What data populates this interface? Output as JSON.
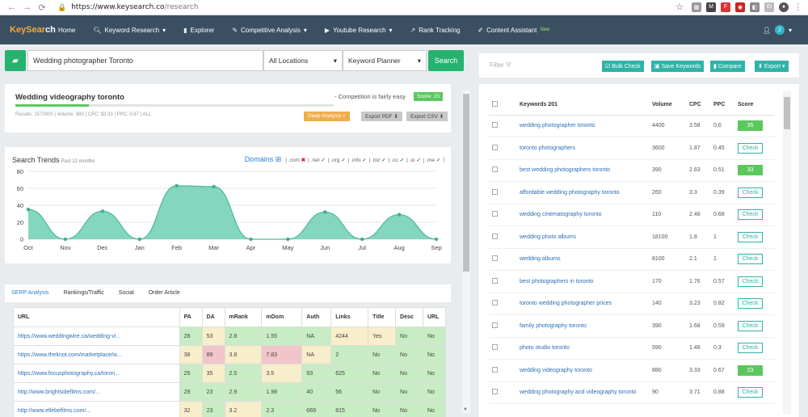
{
  "browser": {
    "url_host": "https://www.keysearch.co",
    "url_path": "/research"
  },
  "nav": {
    "logo_a": "KeySear",
    "logo_b": "ch",
    "items": [
      {
        "label": "Home",
        "icon": "none"
      },
      {
        "label": "Keyword Research",
        "icon": "search-icon"
      },
      {
        "label": "Explorer",
        "icon": "bar-chart-icon"
      },
      {
        "label": "Competitive Analysis",
        "icon": "wrench-icon"
      },
      {
        "label": "Youtube Research",
        "icon": "video-icon"
      },
      {
        "label": "Rank Tracking",
        "icon": "line-chart-icon"
      },
      {
        "label": "Content Assistant",
        "icon": "pencil-icon"
      }
    ],
    "new_badge": "New",
    "notif_count": "2"
  },
  "search": {
    "keyword": "Wedding photographer Toronto",
    "location": "All Locations",
    "source": "Keyword Planner",
    "button": "Search"
  },
  "summary": {
    "title": "Wedding videography toronto",
    "competition": "- Competition is fairly easy",
    "score": "Score: 23",
    "score_value": 23,
    "meta": "Results: 1570000 | Volume: 880 | CPC: $3.33 | PPC: 0.67 | ALL",
    "deep_analysis": "Deep Analysis",
    "export_pdf": "Export PDF",
    "export_csv": "Export CSV"
  },
  "trends": {
    "title": "Search Trends",
    "subtitle": "Past 12 months",
    "domains_label": "Domains",
    "domains": [
      {
        "ext": ".com",
        "ok": false
      },
      {
        "ext": ".net",
        "ok": true
      },
      {
        "ext": ".org",
        "ok": true
      },
      {
        "ext": ".info",
        "ok": true
      },
      {
        "ext": ".biz",
        "ok": true
      },
      {
        "ext": ".co",
        "ok": true
      },
      {
        "ext": ".io",
        "ok": true
      },
      {
        "ext": ".me",
        "ok": true
      }
    ]
  },
  "chart_data": {
    "type": "area",
    "categories": [
      "Oct",
      "Nov",
      "Dec",
      "Jan",
      "Feb",
      "Mar",
      "Apr",
      "May",
      "Jun",
      "Jul",
      "Aug",
      "Sep"
    ],
    "values": [
      35,
      0,
      33,
      0,
      63,
      62,
      0,
      0,
      32,
      0,
      29,
      0
    ],
    "ylim": [
      0,
      80
    ],
    "yticks": [
      0,
      20,
      40,
      60,
      80
    ],
    "color": "#6fcfb4"
  },
  "tabs": [
    "SERP Analysis",
    "Rankings/Traffic",
    "Social",
    "Order Article"
  ],
  "serp": {
    "headers": [
      "URL",
      "PA",
      "DA",
      "mRank",
      "mDom",
      "Auth",
      "Links",
      "Title",
      "Desc",
      "URL"
    ],
    "rows": [
      {
        "cells": [
          "https://www.weddingwire.ca/wedding-vi...",
          "28",
          "53",
          "2.8",
          "1.55",
          "NA",
          "4244",
          "Yes",
          "No",
          "No"
        ],
        "hl": [
          "",
          "",
          "y",
          "",
          "",
          "",
          "y",
          "y",
          "",
          ""
        ]
      },
      {
        "cells": [
          "https://www.theknot.com/marketplace/w...",
          "38",
          "89",
          "3.8",
          "7.83",
          "NA",
          "2",
          "No",
          "No",
          "No"
        ],
        "hl": [
          "",
          "y",
          "r",
          "y",
          "r",
          "y",
          "",
          "",
          "",
          ""
        ]
      },
      {
        "cells": [
          "https://www.focusphotography.ca/toron...",
          "25",
          "35",
          "2.5",
          "3.5",
          "93",
          "625",
          "No",
          "No",
          "No"
        ],
        "hl": [
          "",
          "",
          "y",
          "",
          "y",
          "",
          "",
          "",
          "",
          ""
        ]
      },
      {
        "cells": [
          "http://www.brightsidefilms.com/...",
          "29",
          "23",
          "2.9",
          "1.98",
          "40",
          "56",
          "No",
          "No",
          "No"
        ],
        "hl": [
          "",
          "",
          "",
          "",
          "",
          "",
          "",
          "",
          "",
          ""
        ]
      },
      {
        "cells": [
          "http://www.ellebefilms.com/...",
          "32",
          "23",
          "3.2",
          "2.3",
          "669",
          "815",
          "No",
          "No",
          "No"
        ],
        "hl": [
          "",
          "y",
          "",
          "y",
          "",
          "",
          "",
          "",
          "",
          ""
        ]
      }
    ]
  },
  "right": {
    "filter": "Filter",
    "buttons": [
      "Bulk Check",
      "Save Keywords",
      "Compare",
      "Export"
    ],
    "headers": [
      "Keywords 201",
      "Volume",
      "CPC",
      "PPC",
      "Score"
    ],
    "rows": [
      {
        "kw": "wedding photographer toronto",
        "vol": "4400",
        "cpc": "3.58",
        "ppc": "0.6",
        "score": "35"
      },
      {
        "kw": "toronto photographers",
        "vol": "3600",
        "cpc": "1.87",
        "ppc": "0.45",
        "score": "Check"
      },
      {
        "kw": "best wedding photographers toronto",
        "vol": "390",
        "cpc": "2.83",
        "ppc": "0.51",
        "score": "33"
      },
      {
        "kw": "affordable wedding photography toronto",
        "vol": "260",
        "cpc": "3.3",
        "ppc": "0.39",
        "score": "Check"
      },
      {
        "kw": "wedding cinematography toronto",
        "vol": "110",
        "cpc": "2.48",
        "ppc": "0.68",
        "score": "Check"
      },
      {
        "kw": "wedding photo albums",
        "vol": "18100",
        "cpc": "1.8",
        "ppc": "1",
        "score": "Check"
      },
      {
        "kw": "wedding albums",
        "vol": "8100",
        "cpc": "2.1",
        "ppc": "1",
        "score": "Check"
      },
      {
        "kw": "best photographers in toronto",
        "vol": "170",
        "cpc": "1.76",
        "ppc": "0.57",
        "score": "Check"
      },
      {
        "kw": "toronto wedding photographer prices",
        "vol": "140",
        "cpc": "3.23",
        "ppc": "0.82",
        "score": "Check"
      },
      {
        "kw": "family photography toronto",
        "vol": "390",
        "cpc": "1.68",
        "ppc": "0.59",
        "score": "Check"
      },
      {
        "kw": "photo studio toronto",
        "vol": "590",
        "cpc": "1.48",
        "ppc": "0.3",
        "score": "Check"
      },
      {
        "kw": "wedding videography toronto",
        "vol": "880",
        "cpc": "3.33",
        "ppc": "0.67",
        "score": "23"
      },
      {
        "kw": "wedding photography and videography toronto",
        "vol": "90",
        "cpc": "3.71",
        "ppc": "0.88",
        "score": "Check"
      }
    ]
  }
}
